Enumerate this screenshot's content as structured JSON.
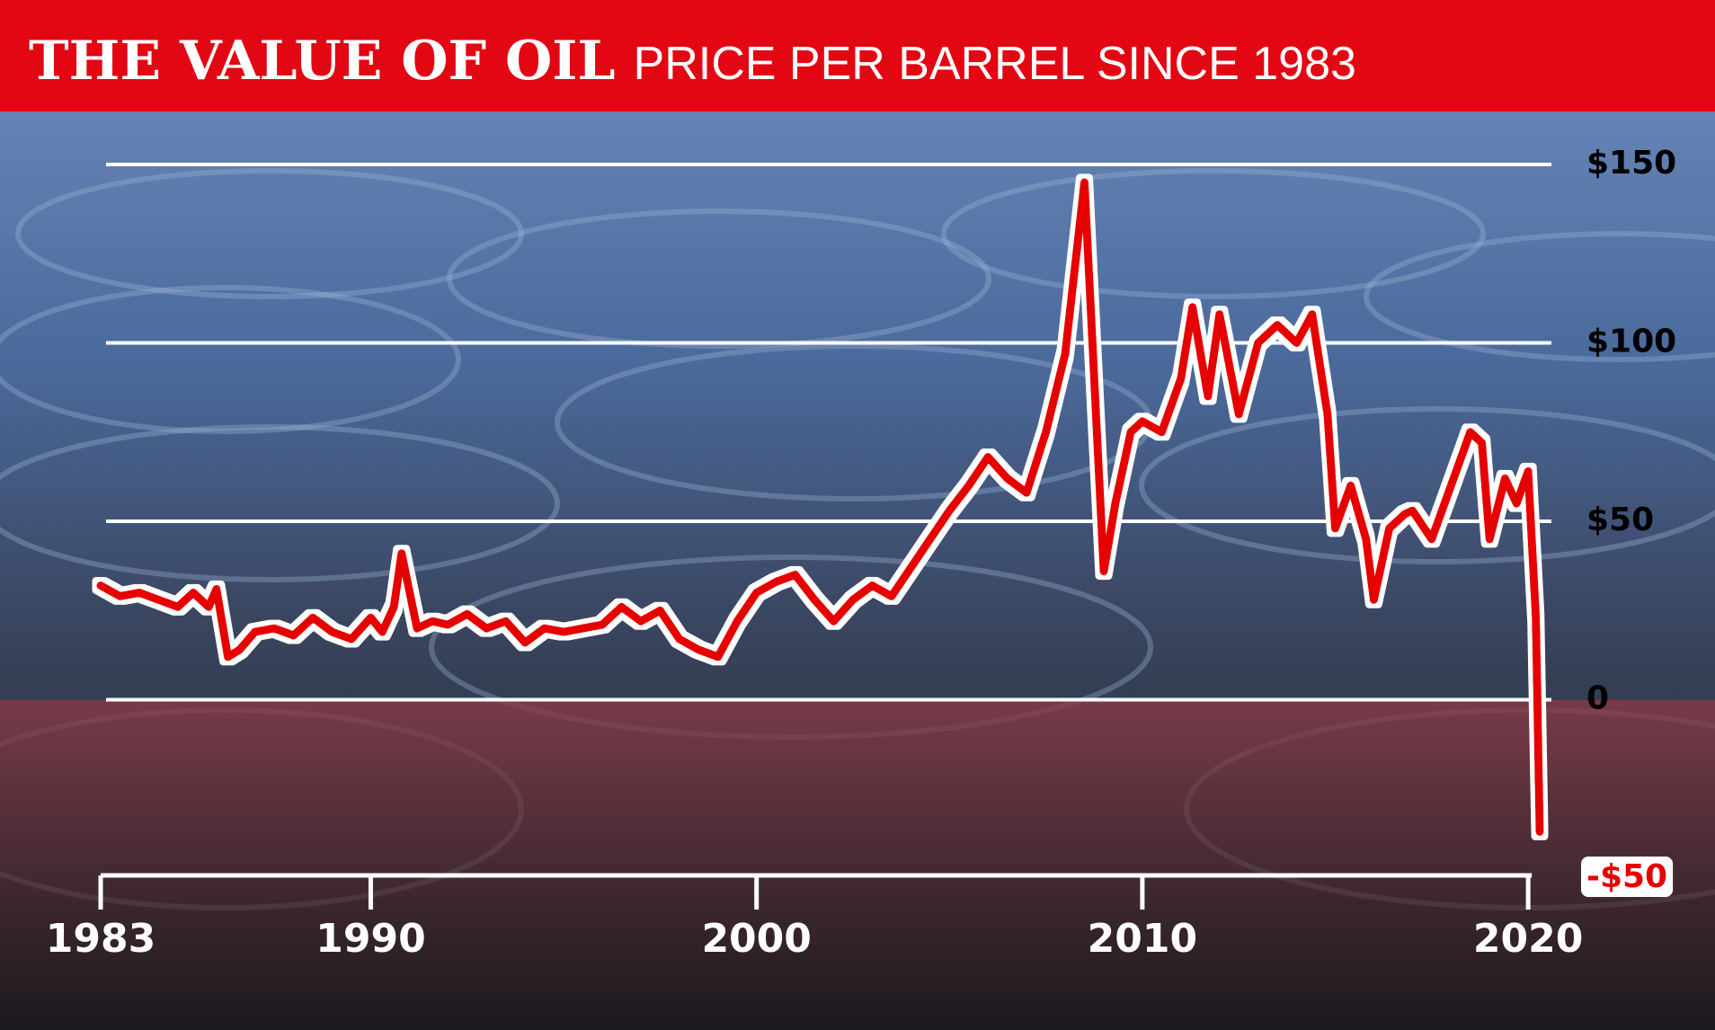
{
  "chart_data": {
    "type": "line",
    "title": "THE VALUE OF OIL",
    "subtitle": "PRICE PER BARREL SINCE 1983",
    "x": [
      1983,
      1983.5,
      1984,
      1984.5,
      1985,
      1985.4,
      1985.8,
      1986.0,
      1986.3,
      1986.6,
      1987,
      1987.5,
      1988,
      1988.5,
      1989,
      1989.5,
      1990,
      1990.3,
      1990.6,
      1990.8,
      1991.2,
      1991.6,
      1992,
      1992.5,
      1993,
      1993.5,
      1994,
      1994.5,
      1995,
      1995.5,
      1996,
      1996.5,
      1997,
      1997.5,
      1998,
      1998.5,
      1999,
      1999.5,
      2000,
      2000.5,
      2001,
      2001.5,
      2002,
      2002.5,
      2003,
      2003.5,
      2004,
      2004.5,
      2005,
      2005.5,
      2006,
      2006.5,
      2007,
      2007.5,
      2008,
      2008.5,
      2009,
      2009.3,
      2009.7,
      2010,
      2010.5,
      2011,
      2011.3,
      2011.7,
      2012,
      2012.5,
      2013,
      2013.5,
      2014,
      2014.4,
      2014.8,
      2015,
      2015.4,
      2015.8,
      2016,
      2016.4,
      2016.8,
      2017,
      2017.5,
      2018,
      2018.5,
      2018.8,
      2019,
      2019.4,
      2019.7,
      2020,
      2020.2,
      2020.3
    ],
    "values": [
      32,
      29,
      30,
      28,
      26,
      30,
      26,
      31,
      12,
      14,
      19,
      20,
      18,
      23,
      19,
      17,
      23,
      19,
      26,
      41,
      20,
      22,
      21,
      24,
      20,
      22,
      16,
      20,
      19,
      20,
      21,
      26,
      22,
      25,
      17,
      14,
      12,
      22,
      30,
      33,
      35,
      28,
      22,
      28,
      32,
      29,
      37,
      45,
      53,
      60,
      68,
      62,
      58,
      75,
      97,
      145,
      36,
      55,
      75,
      78,
      75,
      90,
      110,
      85,
      108,
      80,
      100,
      105,
      100,
      108,
      80,
      48,
      60,
      45,
      28,
      48,
      52,
      53,
      45,
      60,
      75,
      72,
      45,
      62,
      55,
      64,
      23,
      -37
    ],
    "color": "#e60000",
    "xlim": [
      1983,
      2020.3
    ],
    "xticks": [
      1983,
      1990,
      2000,
      2010,
      2020
    ],
    "ylim": [
      -50,
      150
    ],
    "yticks": [
      {
        "value": -50,
        "label": "-$50"
      },
      0,
      {
        "value": 50,
        "label": "$50"
      },
      {
        "value": 100,
        "label": "$100"
      },
      {
        "value": 150,
        "label": "$150"
      }
    ],
    "grid": true
  }
}
